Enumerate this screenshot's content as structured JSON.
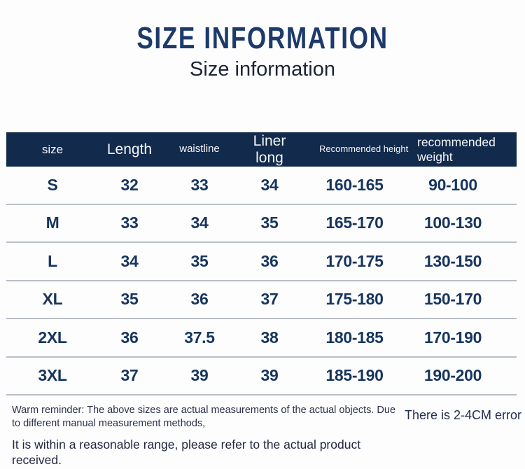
{
  "page": {
    "title": "SIZE INFORMATION",
    "subtitle": "Size information"
  },
  "chart_data": {
    "type": "table",
    "title": "SIZE INFORMATION",
    "subtitle": "Size information",
    "columns": [
      "size",
      "Length",
      "waistline",
      "Liner long",
      "Recommended height",
      "recommended weight"
    ],
    "rows": [
      [
        "S",
        "32",
        "33",
        "34",
        "160-165",
        "90-100"
      ],
      [
        "M",
        "33",
        "34",
        "35",
        "165-170",
        "100-130"
      ],
      [
        "L",
        "34",
        "35",
        "36",
        "170-175",
        "130-150"
      ],
      [
        "XL",
        "35",
        "36",
        "37",
        "175-180",
        "150-170"
      ],
      [
        "2XL",
        "36",
        "37.5",
        "38",
        "180-185",
        "170-190"
      ],
      [
        "3XL",
        "37",
        "39",
        "39",
        "185-190",
        "190-200"
      ]
    ]
  },
  "footer": {
    "reminder": "Warm reminder: The above sizes are actual measurements of the actual objects. Due to different manual measurement methods,",
    "range_note": "It is within a reasonable range, please refer to the actual product received.",
    "error_note": "There is 2-4CM error"
  },
  "colors": {
    "page_bg": "#fdfdfe",
    "navy_header": "#122a4c",
    "title_blue": "#1d3a6b",
    "text_navy": "#17355e",
    "line_gray": "#b9bdc7",
    "footer_dark": "#2a2f45",
    "header_text": "#f4f6f9"
  }
}
